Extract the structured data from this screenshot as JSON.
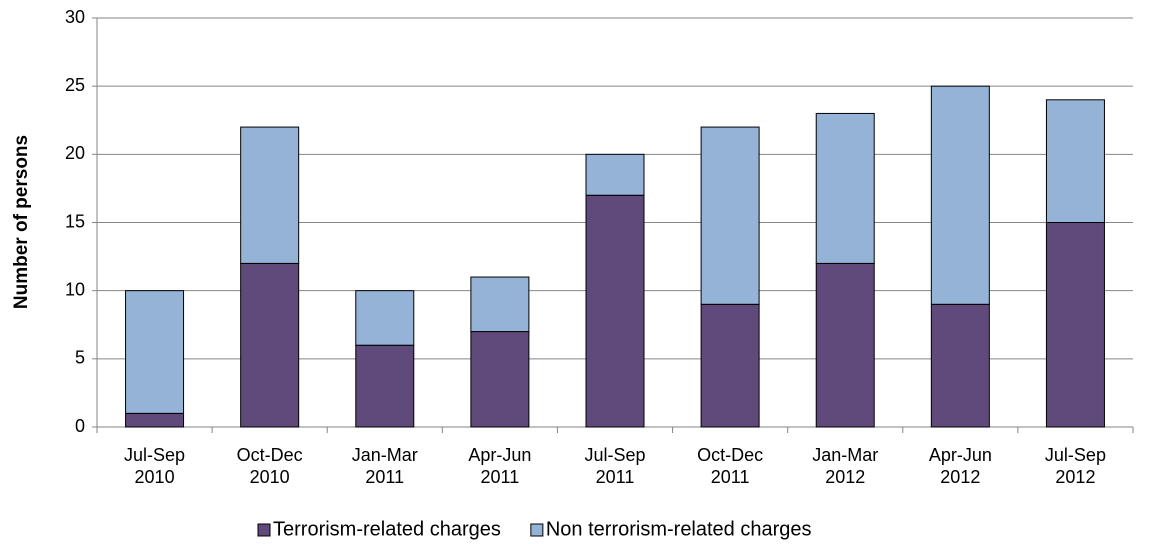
{
  "chart_data": {
    "type": "stacked_bar",
    "y_label": "Number of persons",
    "categories": [
      [
        "Jul-Sep",
        "2010"
      ],
      [
        "Oct-Dec",
        "2010"
      ],
      [
        "Jan-Mar",
        "2011"
      ],
      [
        "Apr-Jun",
        "2011"
      ],
      [
        "Jul-Sep",
        "2011"
      ],
      [
        "Oct-Dec",
        "2011"
      ],
      [
        "Jan-Mar",
        "2012"
      ],
      [
        "Apr-Jun",
        "2012"
      ],
      [
        "Jul-Sep",
        "2012"
      ]
    ],
    "series": [
      {
        "name": "Terrorism-related charges",
        "color": "#604a7b",
        "values": [
          1,
          12,
          6,
          7,
          17,
          9,
          12,
          9,
          15
        ]
      },
      {
        "name": "Non terrorism-related charges",
        "color": "#95b3d7",
        "values": [
          9,
          10,
          4,
          4,
          3,
          13,
          11,
          16,
          9
        ]
      }
    ],
    "ylim": [
      0,
      30
    ],
    "yticks": [
      0,
      5,
      10,
      15,
      20,
      25,
      30
    ],
    "grid": true,
    "legend": "bottom"
  }
}
